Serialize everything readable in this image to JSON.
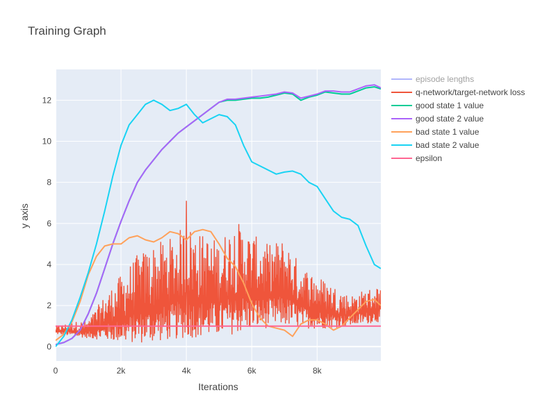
{
  "chart_data": {
    "type": "line",
    "title": "Training Graph",
    "xlabel": "Iterations",
    "ylabel": "y axis",
    "xlim": [
      0,
      9950
    ],
    "ylim": [
      -0.7,
      13.5
    ],
    "x_ticks": [
      0,
      2000,
      4000,
      6000,
      8000
    ],
    "x_tick_labels": [
      "0",
      "2k",
      "4k",
      "6k",
      "8k"
    ],
    "y_ticks": [
      0,
      2,
      4,
      6,
      8,
      10,
      12
    ],
    "y_tick_labels": [
      "0",
      "2",
      "4",
      "6",
      "8",
      "10",
      "12"
    ],
    "grid": true,
    "legend_position": "right",
    "colors": {
      "plot_bg": "#e5ecf6",
      "grid": "#ffffff",
      "title": "#444444"
    },
    "series": [
      {
        "name": "episode lengths",
        "color": "#636efa",
        "legend_only": true,
        "x": [],
        "y": []
      },
      {
        "name": "q-network/target-network loss",
        "color": "#ef553b",
        "noisy": true,
        "x": [
          0,
          500,
          1000,
          1500,
          2000,
          2500,
          3000,
          3500,
          4000,
          4500,
          5000,
          5500,
          6000,
          6500,
          7000,
          7500,
          8000,
          8500,
          9000,
          9500,
          9950
        ],
        "y_low": [
          0.6,
          0.5,
          0.4,
          0.3,
          0.2,
          0.15,
          0.2,
          0.3,
          0.4,
          0.45,
          0.5,
          0.6,
          0.8,
          0.9,
          1.0,
          0.9,
          0.85,
          0.9,
          1.0,
          1.1,
          1.2
        ],
        "y_high": [
          1.0,
          1.2,
          1.3,
          2.5,
          3.5,
          4.5,
          5.0,
          5.3,
          6.0,
          5.5,
          5.2,
          6.2,
          5.5,
          5.0,
          5.3,
          4.0,
          3.5,
          3.0,
          2.5,
          2.8,
          3.0
        ],
        "y_peak": 7.1,
        "y_peak_x": 4000
      },
      {
        "name": "good state 1 value",
        "color": "#00cc96",
        "x": [
          0,
          250,
          500,
          750,
          1000,
          1250,
          1500,
          1750,
          2000,
          2250,
          2500,
          2750,
          3000,
          3250,
          3500,
          3750,
          4000,
          4250,
          4500,
          4750,
          5000,
          5250,
          5500,
          5750,
          6000,
          6250,
          6500,
          6750,
          7000,
          7250,
          7500,
          7750,
          8000,
          8250,
          8500,
          8750,
          9000,
          9250,
          9500,
          9750,
          9950
        ],
        "y": [
          0.1,
          0.2,
          0.4,
          0.8,
          1.6,
          2.6,
          3.8,
          5.0,
          6.1,
          7.1,
          8.0,
          8.6,
          9.1,
          9.6,
          10.0,
          10.4,
          10.7,
          11.0,
          11.3,
          11.6,
          11.9,
          12.0,
          12.0,
          12.05,
          12.1,
          12.1,
          12.15,
          12.25,
          12.35,
          12.3,
          12.0,
          12.15,
          12.25,
          12.4,
          12.35,
          12.3,
          12.3,
          12.45,
          12.6,
          12.65,
          12.55
        ]
      },
      {
        "name": "good state 2 value",
        "color": "#ab63fa",
        "x": [
          0,
          250,
          500,
          750,
          1000,
          1250,
          1500,
          1750,
          2000,
          2250,
          2500,
          2750,
          3000,
          3250,
          3500,
          3750,
          4000,
          4250,
          4500,
          4750,
          5000,
          5250,
          5500,
          5750,
          6000,
          6250,
          6500,
          6750,
          7000,
          7250,
          7500,
          7750,
          8000,
          8250,
          8500,
          8750,
          9000,
          9250,
          9500,
          9750,
          9950
        ],
        "y": [
          0.1,
          0.2,
          0.4,
          0.8,
          1.6,
          2.6,
          3.8,
          5.0,
          6.1,
          7.1,
          8.0,
          8.6,
          9.1,
          9.6,
          10.0,
          10.4,
          10.7,
          11.0,
          11.3,
          11.6,
          11.9,
          12.05,
          12.05,
          12.1,
          12.15,
          12.2,
          12.25,
          12.3,
          12.4,
          12.35,
          12.1,
          12.2,
          12.3,
          12.45,
          12.45,
          12.4,
          12.4,
          12.55,
          12.7,
          12.75,
          12.6
        ]
      },
      {
        "name": "bad state 1 value",
        "color": "#ffa15a",
        "x": [
          0,
          250,
          500,
          750,
          1000,
          1250,
          1500,
          1750,
          2000,
          2250,
          2500,
          2750,
          3000,
          3250,
          3500,
          3750,
          4000,
          4250,
          4500,
          4750,
          5000,
          5250,
          5500,
          5750,
          6000,
          6250,
          6500,
          6750,
          7000,
          7250,
          7500,
          7750,
          8000,
          8250,
          8500,
          8750,
          9000,
          9250,
          9500,
          9750,
          9950
        ],
        "y": [
          0.3,
          0.6,
          1.2,
          2.2,
          3.5,
          4.4,
          4.9,
          5.0,
          5.0,
          5.3,
          5.4,
          5.2,
          5.1,
          5.3,
          5.6,
          5.5,
          5.2,
          5.6,
          5.7,
          5.6,
          5.0,
          4.3,
          3.9,
          3.1,
          2.1,
          1.4,
          1.0,
          0.9,
          0.8,
          0.5,
          1.1,
          1.3,
          1.3,
          1.1,
          0.8,
          1.0,
          1.4,
          1.8,
          2.2,
          2.3,
          2.0
        ]
      },
      {
        "name": "bad state 2 value",
        "color": "#19d3f3",
        "x": [
          0,
          250,
          500,
          750,
          1000,
          1250,
          1500,
          1750,
          2000,
          2250,
          2500,
          2750,
          3000,
          3250,
          3500,
          3750,
          4000,
          4250,
          4500,
          4750,
          5000,
          5250,
          5500,
          5750,
          6000,
          6250,
          6500,
          6750,
          7000,
          7250,
          7500,
          7750,
          8000,
          8250,
          8500,
          8750,
          9000,
          9250,
          9500,
          9750,
          9950
        ],
        "y": [
          0.0,
          0.5,
          1.3,
          2.4,
          3.6,
          5.0,
          6.6,
          8.3,
          9.8,
          10.8,
          11.3,
          11.8,
          12.0,
          11.8,
          11.5,
          11.6,
          11.8,
          11.3,
          10.9,
          11.1,
          11.3,
          11.2,
          10.8,
          9.8,
          9.0,
          8.8,
          8.6,
          8.4,
          8.5,
          8.55,
          8.4,
          8.0,
          7.8,
          7.2,
          6.6,
          6.3,
          6.2,
          5.9,
          4.9,
          4.0,
          3.8
        ]
      },
      {
        "name": "epsilon",
        "color": "#ff6692",
        "x": [
          0,
          9950
        ],
        "y": [
          1.0,
          1.0
        ]
      }
    ]
  }
}
